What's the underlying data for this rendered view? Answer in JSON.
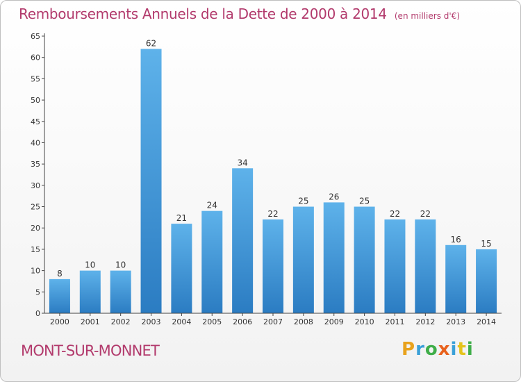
{
  "header": {
    "title": "Remboursements Annuels de la Dette de 2000 à 2014",
    "subtitle": "(en milliers d'€)"
  },
  "footer": {
    "town": "MONT-SUR-MONNET",
    "logo_letters": [
      "P",
      "r",
      "o",
      "x",
      "i",
      "t",
      "i"
    ],
    "logo_colors": [
      "#e8a21c",
      "#3aa0d8",
      "#3fae49",
      "#e8611c",
      "#3aa0d8",
      "#e4c31c",
      "#3fae49"
    ]
  },
  "colors": {
    "bar_top": "#5eb2ea",
    "bar_bottom": "#2b7cc2",
    "axis": "#444444",
    "text": "#333333"
  },
  "chart_data": {
    "type": "bar",
    "title": "Remboursements Annuels de la Dette de 2000 à 2014",
    "subtitle": "(en milliers d'€)",
    "categories": [
      "2000",
      "2001",
      "2002",
      "2003",
      "2004",
      "2005",
      "2006",
      "2007",
      "2008",
      "2009",
      "2010",
      "2011",
      "2012",
      "2013",
      "2014"
    ],
    "values": [
      8,
      10,
      10,
      62,
      21,
      24,
      34,
      22,
      25,
      26,
      25,
      22,
      22,
      16,
      15
    ],
    "ylim": [
      0,
      65
    ],
    "yticks": [
      0,
      5,
      10,
      15,
      20,
      25,
      30,
      35,
      40,
      45,
      50,
      55,
      60,
      65
    ],
    "xlabel": "",
    "ylabel": "",
    "grid": false,
    "data_labels": true
  }
}
